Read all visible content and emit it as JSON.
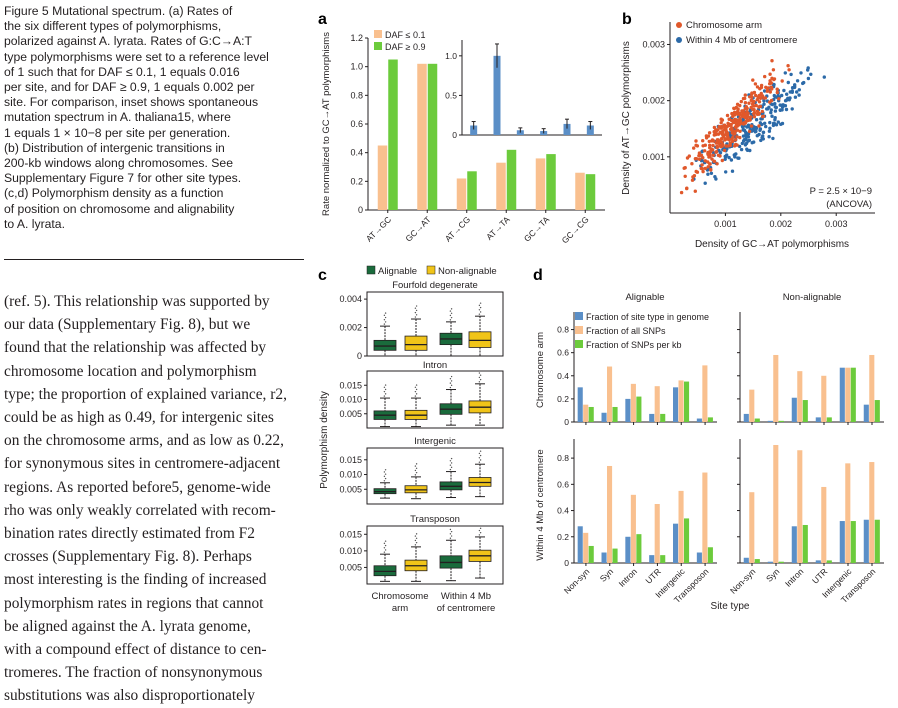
{
  "caption": {
    "lines": [
      "Figure 5  Mutational spectrum. (a) Rates of",
      "the six different types of polymorphisms,",
      "polarized against A. lyrata. Rates of G:C→A:T",
      "type polymorphisms were set to a reference level",
      "of 1 such that for DAF ≤ 0.1, 1 equals 0.016",
      "per site, and for DAF ≥ 0.9, 1 equals 0.002 per",
      "site. For comparison, inset shows spontaneous",
      "mutation spectrum in A. thaliana15, where",
      "1 equals 1 × 10−8 per site per generation.",
      "(b) Distribution of intergenic transitions in",
      "200-kb windows along chromosomes. See",
      "Supplementary Figure 7 for other site types.",
      "(c,d) Polymorphism density as a function",
      "of position on chromosome and alignability",
      "to A. lyrata."
    ]
  },
  "body_text": {
    "lines": [
      "(ref. 5). This relationship was supported by",
      "our data (Supplementary Fig. 8), but we",
      "found that the relationship was affected by",
      "chromosome location and polymorphism",
      "type; the proportion of explained variance, r2,",
      "could be as high as 0.49, for intergenic sites",
      "on the chromosome arms, and as low as 0.22,",
      "for synonymous sites in centromere-adjacent",
      "regions. As reported before5, genome-wide",
      "rho was only weakly correlated with recom-",
      "bination rates directly estimated from F2",
      "crosses (Supplementary Fig. 8). Perhaps",
      "most interesting is the finding of increased",
      "polymorphism rates in regions that cannot",
      "be aligned against the A. lyrata genome,",
      "with a compound effect of distance to cen-",
      "tromeres. The fraction of nonsynonymous",
      "substitutions was also disproportionately"
    ]
  },
  "panel_labels": {
    "a": "a",
    "b": "b",
    "c": "c",
    "d": "d"
  },
  "colors": {
    "daf_low": "#f9c08f",
    "daf_high": "#6ccb3c",
    "inset_bar": "#5b8fc7",
    "chrom_arm": "#e0582b",
    "centromere": "#2c6aa8",
    "alignable": "#1a6b3c",
    "nonalignable": "#f0c419",
    "frac_genome": "#5b8fc7",
    "frac_snps": "#f9c08f",
    "frac_snps_kb": "#6ccb3c"
  },
  "chart_data": [
    {
      "panel": "a",
      "type": "bar",
      "ylabel": "Rate normalized to GC→AT polymorphisms",
      "ylim": [
        0,
        1.2
      ],
      "yticks": [
        "0",
        "0.2",
        "0.4",
        "0.6",
        "0.8",
        "1.0",
        "1.2"
      ],
      "categories": [
        "AT→GC",
        "GC→AT",
        "AT→CG",
        "AT→TA",
        "GC→TA",
        "GC→CG"
      ],
      "series": [
        {
          "name": "DAF ≤ 0.1",
          "values": [
            0.45,
            1.02,
            0.22,
            0.33,
            0.36,
            0.26
          ]
        },
        {
          "name": "DAF ≥ 0.9",
          "values": [
            1.05,
            1.02,
            0.27,
            0.42,
            0.39,
            0.25
          ]
        }
      ],
      "inset": {
        "type": "bar",
        "ylim": [
          0,
          1.2
        ],
        "yticks": [
          "0",
          "0.5",
          "1.0"
        ],
        "values": [
          0.12,
          1.0,
          0.06,
          0.05,
          0.14,
          0.12
        ],
        "errors": [
          0.05,
          0.15,
          0.03,
          0.03,
          0.06,
          0.05
        ]
      }
    },
    {
      "panel": "b",
      "type": "scatter",
      "xlabel": "Density of GC→AT polymorphisms",
      "ylabel": "Density of AT→GC polymorphisms",
      "xlim": [
        0,
        0.0037
      ],
      "ylim": [
        0,
        0.0034
      ],
      "xticks": [
        "0.001",
        "0.002",
        "0.003"
      ],
      "yticks": [
        "0.001",
        "0.002",
        "0.003"
      ],
      "legend": [
        "Chromosome arm",
        "Within 4 Mb of centromere"
      ],
      "annotation": [
        "P = 2.5 × 10−9",
        "(ANCOVA)"
      ]
    },
    {
      "panel": "c",
      "type": "box",
      "ylabel": "Polymorphism density",
      "legend": [
        "Alignable",
        "Non-alignable"
      ],
      "categories": [
        "Chromosome arm",
        "Within 4 Mb of centromere"
      ],
      "subpanels": [
        {
          "title": "Fourfold degenerate",
          "ylim": [
            0,
            0.0045
          ],
          "yticks": [
            "0",
            "0.002",
            "0.004"
          ],
          "boxes": [
            {
              "q1": 0.0004,
              "med": 0.0007,
              "q3": 0.0011,
              "lo": 0.0,
              "hi": 0.0021
            },
            {
              "q1": 0.0004,
              "med": 0.0008,
              "q3": 0.0014,
              "lo": 0.0,
              "hi": 0.0026
            },
            {
              "q1": 0.0008,
              "med": 0.0012,
              "q3": 0.0016,
              "lo": 0.0,
              "hi": 0.0024
            },
            {
              "q1": 0.0006,
              "med": 0.0011,
              "q3": 0.0017,
              "lo": 0.0,
              "hi": 0.0028
            }
          ]
        },
        {
          "title": "Intron",
          "ylim": [
            0,
            0.02
          ],
          "yticks": [
            "0.005",
            "0.010",
            "0.015"
          ],
          "boxes": [
            {
              "q1": 0.003,
              "med": 0.0045,
              "q3": 0.006,
              "lo": 0.0005,
              "hi": 0.0105
            },
            {
              "q1": 0.003,
              "med": 0.0045,
              "q3": 0.0062,
              "lo": 0.0005,
              "hi": 0.0105
            },
            {
              "q1": 0.0048,
              "med": 0.0066,
              "q3": 0.0085,
              "lo": 0.001,
              "hi": 0.0135
            },
            {
              "q1": 0.0053,
              "med": 0.0073,
              "q3": 0.0095,
              "lo": 0.001,
              "hi": 0.0155
            }
          ]
        },
        {
          "title": "Intergenic",
          "ylim": [
            0,
            0.019
          ],
          "yticks": [
            "0.005",
            "0.010",
            "0.015"
          ],
          "boxes": [
            {
              "q1": 0.0035,
              "med": 0.0042,
              "q3": 0.0052,
              "lo": 0.002,
              "hi": 0.0072
            },
            {
              "q1": 0.0038,
              "med": 0.0048,
              "q3": 0.0062,
              "lo": 0.0018,
              "hi": 0.0092
            },
            {
              "q1": 0.0048,
              "med": 0.006,
              "q3": 0.0075,
              "lo": 0.0022,
              "hi": 0.011
            },
            {
              "q1": 0.006,
              "med": 0.0073,
              "q3": 0.009,
              "lo": 0.0025,
              "hi": 0.0135
            }
          ]
        },
        {
          "title": "Transposon",
          "ylim": [
            0,
            0.0175
          ],
          "yticks": [
            "0.005",
            "0.010",
            "0.015"
          ],
          "boxes": [
            {
              "q1": 0.0025,
              "med": 0.0038,
              "q3": 0.0055,
              "lo": 0.0008,
              "hi": 0.009
            },
            {
              "q1": 0.004,
              "med": 0.0055,
              "q3": 0.0072,
              "lo": 0.0008,
              "hi": 0.0112
            },
            {
              "q1": 0.0048,
              "med": 0.0065,
              "q3": 0.0085,
              "lo": 0.001,
              "hi": 0.0132
            },
            {
              "q1": 0.0068,
              "med": 0.0085,
              "q3": 0.0102,
              "lo": 0.0018,
              "hi": 0.0142
            }
          ]
        }
      ]
    },
    {
      "panel": "d",
      "type": "bar",
      "xlabel": "Site type",
      "column_titles": [
        "Alignable",
        "Non-alignable"
      ],
      "row_titles": [
        "Chromosome arm",
        "Within 4 Mb of centromere"
      ],
      "categories": [
        "Non-syn",
        "Syn",
        "Intron",
        "UTR",
        "Intergenic",
        "Transposon"
      ],
      "legend": [
        "Fraction of site type in genome",
        "Fraction of all SNPs",
        "Fraction of SNPs per kb"
      ],
      "ylim": [
        0,
        0.9
      ],
      "yticks": [
        "0",
        "0.2",
        "0.4",
        "0.6",
        "0.8"
      ],
      "panels": [
        {
          "row": 0,
          "col": 0,
          "values": [
            [
              0.3,
              0.15,
              0.13
            ],
            [
              0.08,
              0.48,
              0.13
            ],
            [
              0.2,
              0.33,
              0.22
            ],
            [
              0.07,
              0.31,
              0.07
            ],
            [
              0.3,
              0.36,
              0.35
            ],
            [
              0.03,
              0.49,
              0.04
            ]
          ]
        },
        {
          "row": 0,
          "col": 1,
          "values": [
            [
              0.07,
              0.28,
              0.03
            ],
            [
              0.01,
              0.58,
              0.01
            ],
            [
              0.21,
              0.44,
              0.19
            ],
            [
              0.04,
              0.4,
              0.04
            ],
            [
              0.47,
              0.47,
              0.47
            ],
            [
              0.15,
              0.58,
              0.19
            ]
          ]
        },
        {
          "row": 1,
          "col": 0,
          "values": [
            [
              0.28,
              0.23,
              0.13
            ],
            [
              0.08,
              0.74,
              0.11
            ],
            [
              0.2,
              0.52,
              0.22
            ],
            [
              0.06,
              0.45,
              0.06
            ],
            [
              0.3,
              0.55,
              0.34
            ],
            [
              0.08,
              0.69,
              0.12
            ]
          ]
        },
        {
          "row": 1,
          "col": 1,
          "values": [
            [
              0.04,
              0.54,
              0.03
            ],
            [
              0.01,
              0.9,
              0.01
            ],
            [
              0.28,
              0.86,
              0.29
            ],
            [
              0.02,
              0.58,
              0.02
            ],
            [
              0.32,
              0.76,
              0.32
            ],
            [
              0.33,
              0.77,
              0.33
            ]
          ]
        }
      ]
    }
  ]
}
